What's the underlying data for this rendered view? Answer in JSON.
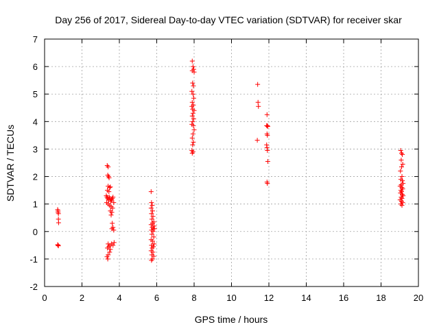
{
  "chart_data": {
    "type": "scatter",
    "title": "Day 256 of 2017, Sidereal Day-to-day VTEC variation (SDTVAR) for receiver skar",
    "xlabel": "GPS time / hours",
    "ylabel": "SDTVAR / TECUs",
    "xlim": [
      0,
      20
    ],
    "ylim": [
      -2,
      7
    ],
    "xticks": [
      0,
      2,
      4,
      6,
      8,
      10,
      12,
      14,
      16,
      18,
      20
    ],
    "yticks": [
      -2,
      -1,
      0,
      1,
      2,
      3,
      4,
      5,
      6,
      7
    ],
    "xtick_labels": [
      "0",
      "2",
      "4",
      "6",
      "8",
      "10",
      "12",
      "14",
      "16",
      "18",
      "20"
    ],
    "ytick_labels": [
      "-2",
      "-1",
      "0",
      "1",
      "2",
      "3",
      "4",
      "5",
      "6",
      "7"
    ],
    "grid": true,
    "marker": "plus",
    "color": "#ff0000",
    "series": [
      {
        "name": "SDTVAR",
        "points": [
          [
            0.7,
            0.8
          ],
          [
            0.72,
            0.75
          ],
          [
            0.72,
            0.7
          ],
          [
            0.74,
            0.65
          ],
          [
            0.74,
            0.45
          ],
          [
            0.75,
            0.32
          ],
          [
            0.7,
            -0.48
          ],
          [
            0.72,
            -0.5
          ],
          [
            0.74,
            -0.52
          ],
          [
            3.35,
            2.4
          ],
          [
            3.4,
            2.35
          ],
          [
            3.38,
            2.05
          ],
          [
            3.42,
            2.0
          ],
          [
            3.45,
            1.95
          ],
          [
            3.4,
            1.65
          ],
          [
            3.48,
            1.6
          ],
          [
            3.52,
            1.62
          ],
          [
            3.36,
            1.5
          ],
          [
            3.44,
            1.45
          ],
          [
            3.3,
            1.3
          ],
          [
            3.34,
            1.25
          ],
          [
            3.38,
            1.2
          ],
          [
            3.42,
            1.15
          ],
          [
            3.46,
            1.25
          ],
          [
            3.5,
            1.2
          ],
          [
            3.54,
            1.1
          ],
          [
            3.58,
            1.15
          ],
          [
            3.62,
            1.2
          ],
          [
            3.66,
            1.25
          ],
          [
            3.7,
            1.05
          ],
          [
            3.32,
            1.05
          ],
          [
            3.4,
            1.0
          ],
          [
            3.48,
            0.95
          ],
          [
            3.56,
            0.9
          ],
          [
            3.64,
            0.85
          ],
          [
            3.52,
            0.75
          ],
          [
            3.6,
            0.7
          ],
          [
            3.56,
            0.6
          ],
          [
            3.62,
            0.3
          ],
          [
            3.66,
            0.15
          ],
          [
            3.6,
            0.1
          ],
          [
            3.7,
            0.05
          ],
          [
            3.4,
            -0.45
          ],
          [
            3.5,
            -0.5
          ],
          [
            3.58,
            -0.45
          ],
          [
            3.66,
            -0.5
          ],
          [
            3.72,
            -0.4
          ],
          [
            3.36,
            -0.6
          ],
          [
            3.44,
            -0.55
          ],
          [
            3.52,
            -0.65
          ],
          [
            3.48,
            -0.75
          ],
          [
            3.4,
            -0.85
          ],
          [
            3.34,
            -0.92
          ],
          [
            3.38,
            -1.0
          ],
          [
            5.7,
            1.45
          ],
          [
            5.72,
            1.05
          ],
          [
            5.76,
            0.95
          ],
          [
            5.7,
            0.85
          ],
          [
            5.78,
            0.75
          ],
          [
            5.72,
            0.65
          ],
          [
            5.8,
            0.55
          ],
          [
            5.74,
            0.45
          ],
          [
            5.84,
            0.35
          ],
          [
            5.78,
            0.3
          ],
          [
            5.7,
            0.25
          ],
          [
            5.86,
            0.2
          ],
          [
            5.76,
            0.15
          ],
          [
            5.82,
            0.1
          ],
          [
            5.72,
            0.05
          ],
          [
            5.88,
            0.1
          ],
          [
            5.8,
            0.0
          ],
          [
            5.74,
            -0.1
          ],
          [
            5.84,
            -0.2
          ],
          [
            5.7,
            -0.3
          ],
          [
            5.78,
            -0.35
          ],
          [
            5.86,
            -0.45
          ],
          [
            5.72,
            -0.5
          ],
          [
            5.82,
            -0.55
          ],
          [
            5.76,
            -0.6
          ],
          [
            5.7,
            -0.7
          ],
          [
            5.8,
            -0.75
          ],
          [
            5.74,
            -0.85
          ],
          [
            5.84,
            -0.9
          ],
          [
            5.76,
            -1.0
          ],
          [
            5.72,
            -1.05
          ],
          [
            7.9,
            6.2
          ],
          [
            7.94,
            6.0
          ],
          [
            7.98,
            5.9
          ],
          [
            7.9,
            5.85
          ],
          [
            8.0,
            5.8
          ],
          [
            7.92,
            5.4
          ],
          [
            7.96,
            5.3
          ],
          [
            7.88,
            5.1
          ],
          [
            7.94,
            5.0
          ],
          [
            7.98,
            4.85
          ],
          [
            7.9,
            4.7
          ],
          [
            7.96,
            4.6
          ],
          [
            7.88,
            4.55
          ],
          [
            7.92,
            4.45
          ],
          [
            8.0,
            4.4
          ],
          [
            7.94,
            4.3
          ],
          [
            7.9,
            4.2
          ],
          [
            7.98,
            4.1
          ],
          [
            7.92,
            4.0
          ],
          [
            7.88,
            3.9
          ],
          [
            7.96,
            3.85
          ],
          [
            8.0,
            3.7
          ],
          [
            7.94,
            3.55
          ],
          [
            7.9,
            3.4
          ],
          [
            7.96,
            3.25
          ],
          [
            7.92,
            3.15
          ],
          [
            7.88,
            2.95
          ],
          [
            7.94,
            2.9
          ],
          [
            7.9,
            2.85
          ],
          [
            11.4,
            5.35
          ],
          [
            11.42,
            4.7
          ],
          [
            11.44,
            4.55
          ],
          [
            11.38,
            3.32
          ],
          [
            11.9,
            4.25
          ],
          [
            11.88,
            3.85
          ],
          [
            11.92,
            3.85
          ],
          [
            11.94,
            3.82
          ],
          [
            11.9,
            3.55
          ],
          [
            11.92,
            3.5
          ],
          [
            11.88,
            3.15
          ],
          [
            11.9,
            3.05
          ],
          [
            11.92,
            2.95
          ],
          [
            11.94,
            2.55
          ],
          [
            11.9,
            1.8
          ],
          [
            11.92,
            1.75
          ],
          [
            19.05,
            2.95
          ],
          [
            19.1,
            2.85
          ],
          [
            19.14,
            2.8
          ],
          [
            19.08,
            2.6
          ],
          [
            19.16,
            2.45
          ],
          [
            19.1,
            2.35
          ],
          [
            19.04,
            2.2
          ],
          [
            19.12,
            2.0
          ],
          [
            19.06,
            1.9
          ],
          [
            19.14,
            1.85
          ],
          [
            19.18,
            1.75
          ],
          [
            19.08,
            1.7
          ],
          [
            19.02,
            1.65
          ],
          [
            19.12,
            1.6
          ],
          [
            19.16,
            1.55
          ],
          [
            19.06,
            1.5
          ],
          [
            19.1,
            1.45
          ],
          [
            19.04,
            1.4
          ],
          [
            19.14,
            1.35
          ],
          [
            19.18,
            1.3
          ],
          [
            19.08,
            1.25
          ],
          [
            19.12,
            1.2
          ],
          [
            19.02,
            1.15
          ],
          [
            19.1,
            1.1
          ],
          [
            19.16,
            1.05
          ],
          [
            19.06,
            1.0
          ],
          [
            19.12,
            0.95
          ]
        ]
      }
    ]
  }
}
